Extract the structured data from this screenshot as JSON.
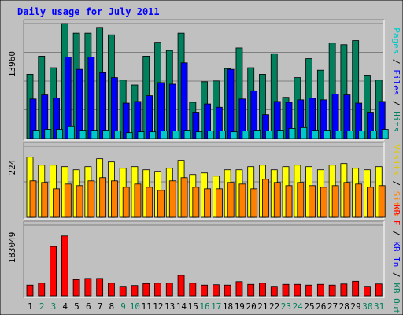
{
  "chart_data": {
    "type": "bar",
    "title": "Daily usage for July 2011",
    "categories": [
      "1",
      "2",
      "3",
      "4",
      "5",
      "6",
      "7",
      "8",
      "9",
      "10",
      "11",
      "12",
      "13",
      "14",
      "15",
      "16",
      "17",
      "18",
      "19",
      "20",
      "21",
      "22",
      "23",
      "24",
      "25",
      "26",
      "27",
      "28",
      "29",
      "30",
      "31"
    ],
    "weekend_days": [
      "2",
      "3",
      "9",
      "10",
      "16",
      "17",
      "23",
      "24",
      "30",
      "31"
    ],
    "panels": [
      {
        "id": "hits",
        "max_label": "13960",
        "ylim": [
          0,
          13960
        ],
        "side_labels": [
          {
            "text": "Pages",
            "color": "#00c8c8"
          },
          {
            "text": "Files",
            "color": "#0000ff"
          },
          {
            "text": "Hits",
            "color": "#00805c"
          }
        ],
        "series": [
          {
            "name": "Hits",
            "color": "#00805c",
            "values": [
              7800,
              10000,
              8600,
              14000,
              12800,
              12800,
              13500,
              12600,
              7100,
              6500,
              10000,
              11700,
              10700,
              12800,
              4400,
              6900,
              7000,
              8500,
              11000,
              8600,
              7800,
              10300,
              5000,
              7400,
              9700,
              8300,
              11600,
              11400,
              11900,
              7700,
              7100
            ]
          },
          {
            "name": "Files",
            "color": "#0000ff",
            "values": [
              4800,
              5300,
              4900,
              9900,
              8400,
              9900,
              8000,
              7400,
              4300,
              4500,
              5200,
              6800,
              6600,
              9200,
              3200,
              4200,
              3800,
              8400,
              4800,
              5800,
              2900,
              4500,
              4400,
              4700,
              4900,
              4700,
              5400,
              5300,
              4300,
              3200,
              4500
            ]
          },
          {
            "name": "Pages",
            "color": "#00c8c8",
            "values": [
              1000,
              1100,
              1100,
              1500,
              1000,
              1000,
              1000,
              900,
              700,
              800,
              800,
              900,
              900,
              1000,
              800,
              900,
              900,
              800,
              900,
              1000,
              900,
              1000,
              1200,
              1400,
              1000,
              1000,
              900,
              900,
              900,
              900,
              1100
            ]
          }
        ]
      },
      {
        "id": "visits",
        "max_label": "224",
        "ylim": [
          0,
          224
        ],
        "side_labels": [
          {
            "text": "Visits",
            "color": "#e0c800"
          },
          {
            "text": "Sites",
            "color": "#ff8000"
          }
        ],
        "series": [
          {
            "name": "Visits",
            "color": "#ffff00",
            "values": [
              190,
              165,
              165,
              160,
              150,
              160,
              185,
              175,
              155,
              160,
              150,
              145,
              155,
              180,
              135,
              140,
              130,
              150,
              150,
              160,
              165,
              150,
              160,
              165,
              160,
              150,
              165,
              170,
              155,
              150,
              160
            ]
          },
          {
            "name": "Sites",
            "color": "#ff8000",
            "values": [
              115,
              110,
              90,
              105,
              100,
              115,
              125,
              115,
              95,
              105,
              95,
              85,
              115,
              125,
              95,
              90,
              90,
              110,
              105,
              90,
              120,
              110,
              100,
              110,
              100,
              95,
              100,
              110,
              105,
              95,
              100
            ]
          }
        ]
      },
      {
        "id": "kbytes",
        "max_label": "183049",
        "ylim": [
          0,
          183049
        ],
        "side_labels": [
          {
            "text": "KB F",
            "color": "#ff0000"
          },
          {
            "text": "KB In",
            "color": "#0000ff"
          },
          {
            "text": "KB Out",
            "color": "#00805c"
          }
        ],
        "series": [
          {
            "name": "KBytes",
            "color": "#ff0000",
            "values": [
              28000,
              33000,
              128000,
              155000,
              42000,
              45000,
              45000,
              33000,
              25000,
              27000,
              32000,
              33000,
              33000,
              53000,
              33000,
              28000,
              29000,
              28000,
              37000,
              30000,
              33000,
              25000,
              30000,
              30000,
              28000,
              30000,
              28000,
              31000,
              38000,
              25000,
              31000
            ]
          }
        ]
      }
    ]
  }
}
